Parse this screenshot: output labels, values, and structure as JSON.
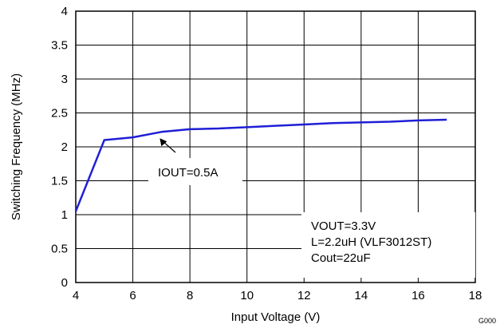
{
  "chart_data": {
    "type": "line",
    "title": "",
    "xlabel": "Input Voltage (V)",
    "ylabel": "Switching Frequency (MHz)",
    "xlim": [
      4,
      18
    ],
    "ylim": [
      0,
      4
    ],
    "grid": true,
    "xticks": [
      4,
      6,
      8,
      10,
      12,
      14,
      16,
      18
    ],
    "yticks": [
      0,
      0.5,
      1,
      1.5,
      2,
      2.5,
      3,
      3.5,
      4
    ],
    "series": [
      {
        "color": "#1f1fd6",
        "x": [
          4,
          5,
          6,
          7,
          8,
          9,
          10,
          11,
          12,
          13,
          14,
          15,
          16,
          17
        ],
        "y": [
          1.05,
          2.1,
          2.14,
          2.22,
          2.26,
          2.27,
          2.29,
          2.31,
          2.33,
          2.35,
          2.36,
          2.37,
          2.39,
          2.4
        ]
      }
    ],
    "annotations": {
      "callout": "IOUT=0.5A",
      "conditions": [
        "VOUT=3.3V",
        "L=2.2uH (VLF3012ST)",
        "Cout=22uF"
      ]
    },
    "figure_id": "G000"
  }
}
